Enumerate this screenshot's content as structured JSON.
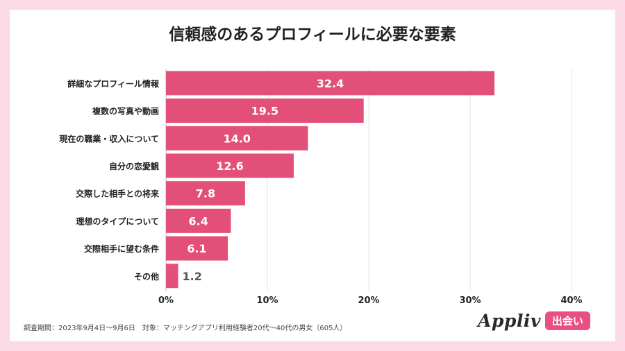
{
  "title": "信頼感のあるプロフィールに必要な要素",
  "footnote": "調査期間：2023年9月4日〜9月6日　対象：マッチングアプリ利用経験者20代〜40代の男女（605人）",
  "logo": {
    "word": "Appliv",
    "badge": "出会い"
  },
  "chart_data": {
    "type": "bar",
    "orientation": "horizontal",
    "categories": [
      "詳細なプロフィール情報",
      "複数の写真や動画",
      "現在の職業・収入について",
      "自分の恋愛観",
      "交際した相手との将来",
      "理想のタイプについて",
      "交際相手に望む条件",
      "その他"
    ],
    "values": [
      32.4,
      19.5,
      14.0,
      12.6,
      7.8,
      6.4,
      6.1,
      1.2
    ],
    "value_labels": [
      "32.4",
      "19.5",
      "14.0",
      "12.6",
      "7.8",
      "6.4",
      "6.1",
      "1.2"
    ],
    "xlim": [
      0,
      40
    ],
    "xticks": [
      "0%",
      "10%",
      "20%",
      "30%",
      "40%"
    ],
    "grid": true,
    "bar_color": "#e2507a",
    "inside_label_color": "#ffffff",
    "outside_label_color": "#555555"
  }
}
